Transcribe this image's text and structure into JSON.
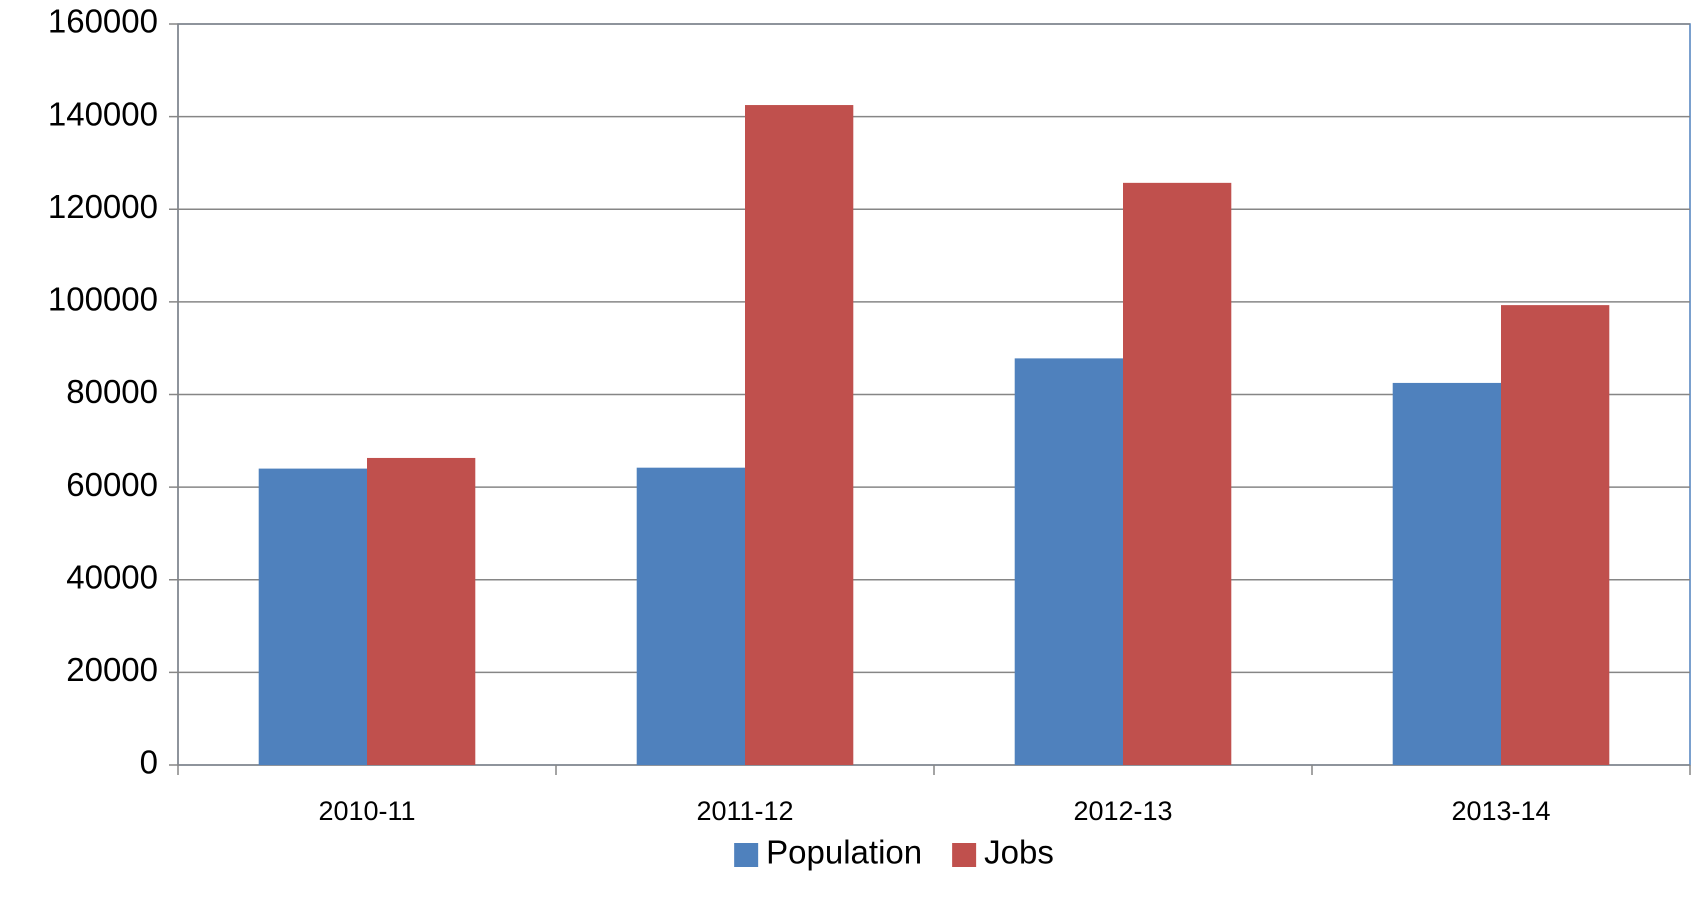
{
  "chart_data": {
    "type": "bar",
    "categories": [
      "2010-11",
      "2011-12",
      "2012-13",
      "2013-14"
    ],
    "series": [
      {
        "name": "Population",
        "color": "#4f81bd",
        "values": [
          64000,
          64200,
          87800,
          82500
        ]
      },
      {
        "name": "Jobs",
        "color": "#c0504d",
        "values": [
          66300,
          142500,
          125700,
          99300
        ]
      }
    ],
    "ylim": [
      0,
      160000
    ],
    "yticks": [
      0,
      20000,
      40000,
      60000,
      80000,
      100000,
      120000,
      140000,
      160000
    ],
    "grid": true,
    "legend": "bottom"
  }
}
